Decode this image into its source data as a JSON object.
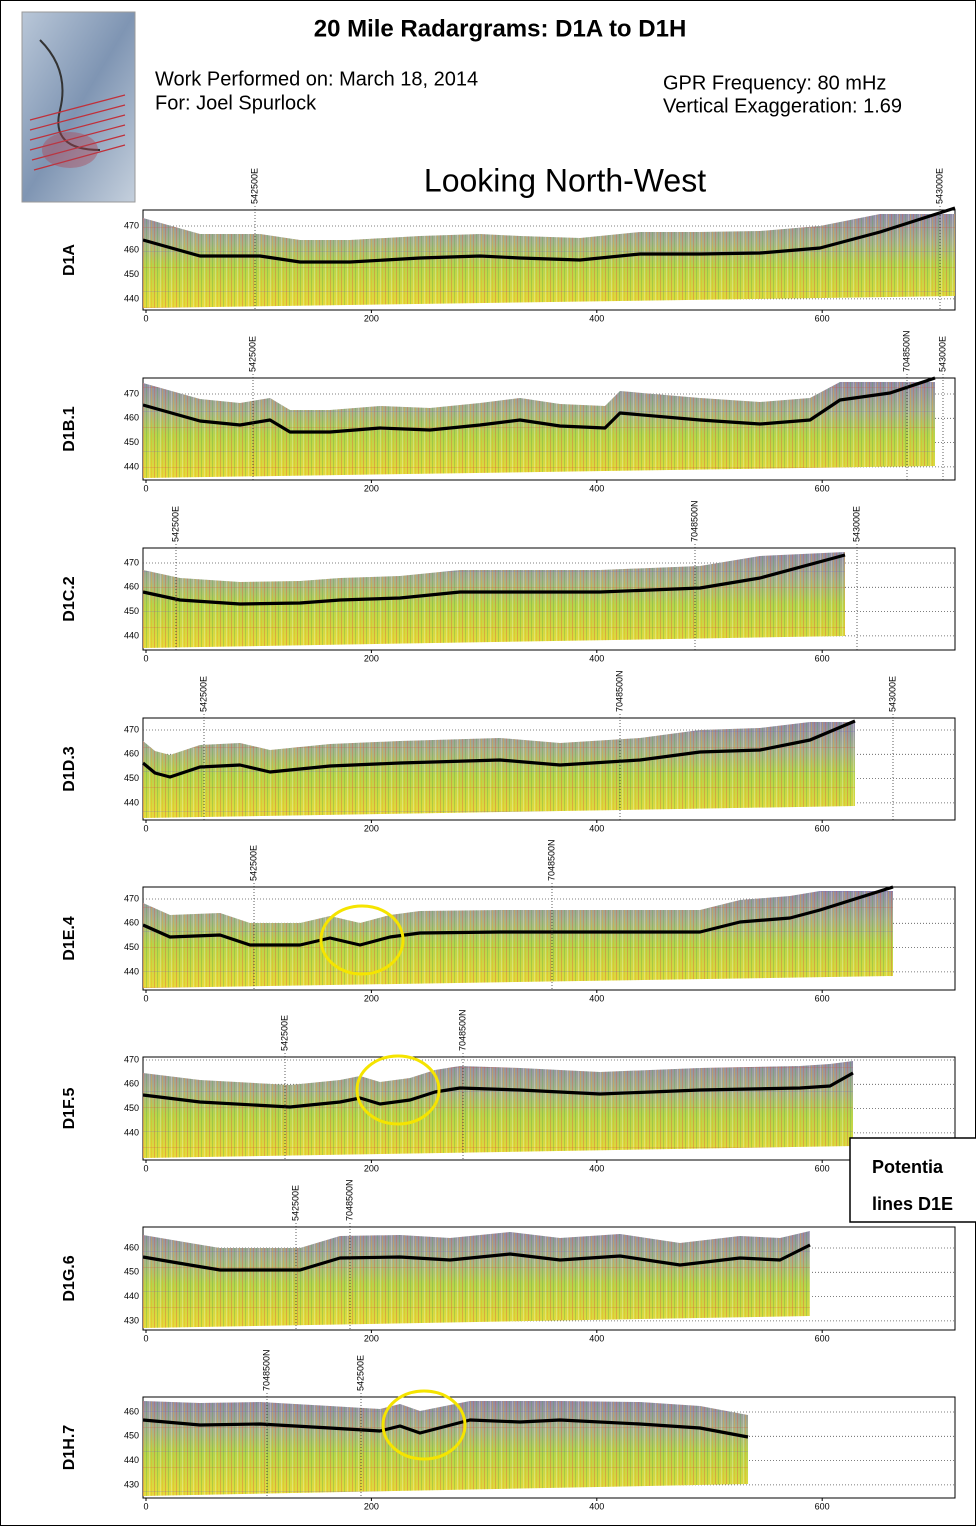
{
  "header": {
    "title": "20 Mile Radargrams: D1A to D1H",
    "work_performed": "Work Performed on: March 18, 2014",
    "for": "For: Joel Spurlock",
    "gpr_frequency": "GPR Frequency: 80 mHz",
    "vertical_exaggeration": "Vertical Exaggeration: 1.69",
    "view": "Looking North-West"
  },
  "panels": [
    {
      "label": "D1A",
      "yticks": [
        470,
        460,
        450,
        440
      ],
      "xticks": [
        0,
        200,
        400,
        600
      ],
      "markers": [
        "542500E",
        "543000E"
      ]
    },
    {
      "label": "D1B.1",
      "yticks": [
        470,
        460,
        450,
        440
      ],
      "xticks": [
        0,
        200,
        400,
        600
      ],
      "markers": [
        "542500E",
        "7048500N",
        "543000E"
      ]
    },
    {
      "label": "D1C.2",
      "yticks": [
        470,
        460,
        450,
        440
      ],
      "xticks": [
        0,
        200,
        400,
        600
      ],
      "markers": [
        "542500E",
        "7048500N",
        "543000E"
      ]
    },
    {
      "label": "D1D.3",
      "yticks": [
        470,
        460,
        450,
        440
      ],
      "xticks": [
        0,
        200,
        400,
        600
      ],
      "markers": [
        "542500E",
        "7048500N",
        "543000E"
      ]
    },
    {
      "label": "D1E.4",
      "yticks": [
        470,
        460,
        450,
        440
      ],
      "xticks": [
        0,
        200,
        400,
        600
      ],
      "markers": [
        "542500E",
        "7048500N"
      ]
    },
    {
      "label": "D1F.5",
      "yticks": [
        470,
        460,
        450,
        440
      ],
      "xticks": [
        0,
        200,
        400,
        600
      ],
      "markers": [
        "542500E",
        "7048500N"
      ]
    },
    {
      "label": "D1G.6",
      "yticks": [
        460,
        450,
        440,
        430
      ],
      "xticks": [
        0,
        200,
        400,
        600
      ],
      "markers": [
        "542500E",
        "7048500N"
      ]
    },
    {
      "label": "D1H.7",
      "yticks": [
        460,
        450,
        440,
        430
      ],
      "xticks": [
        0,
        200,
        400,
        600
      ],
      "markers": [
        "7048500N",
        "542500E"
      ]
    }
  ],
  "callout": {
    "lines": [
      "Potentia",
      "lines D1E"
    ]
  }
}
